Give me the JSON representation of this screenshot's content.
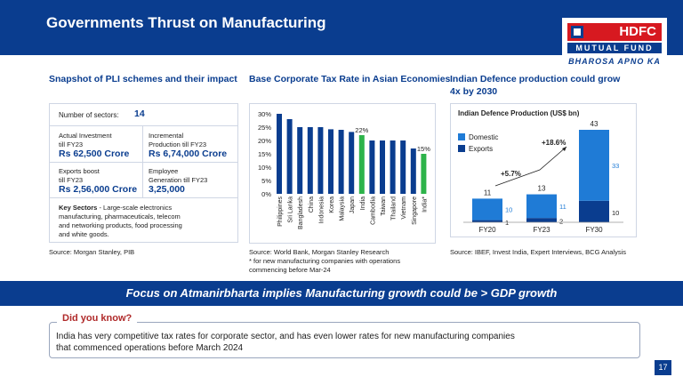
{
  "header": {
    "title": "Governments Thrust on Manufacturing"
  },
  "logo": {
    "brand": "HDFC",
    "line2": "MUTUAL FUND",
    "tagline": "BHAROSA APNO KA"
  },
  "pli": {
    "title": "Snapshot of PLI schemes and their impact",
    "sectors_label": "Number of sectors:",
    "sectors_value": "14",
    "investment_label1": "Actual Investment",
    "investment_label2": "till FY23",
    "investment_value": "Rs 62,500 Crore",
    "production_label1": "Incremental",
    "production_label2": "Production till FY23",
    "production_value": "Rs 6,74,000 Crore",
    "exports_label1": "Exports boost",
    "exports_label2": "till FY23",
    "exports_value": "Rs 2,56,000 Crore",
    "employee_label1": "Employee",
    "employee_label2": "Generation till FY23",
    "employee_value": "3,25,000",
    "key_bold": "Key Sectors",
    "key_text1": " - Large-scale electronics",
    "key_text2": "manufacturing, pharmaceuticals, telecom",
    "key_text3": "and networking products, food processing",
    "key_text4": "and white goods.",
    "source": "Source: Morgan Stanley, PIB"
  },
  "tax": {
    "title": "Base Corporate Tax Rate in Asian Economies",
    "source1": "Source: World Bank, Morgan Stanley Research",
    "source2": "* for new manufacturing companies with operations",
    "source3": "commencing before Mar-24"
  },
  "defence": {
    "title1": "Indian Defence production could grow",
    "title2": "4x by 2030",
    "source": "Source: IBEF, Invest India, Expert Interviews, BCG Analysis"
  },
  "chart_data": [
    {
      "type": "bar",
      "title": "Base Corporate Tax Rate in Asian Economies",
      "categories": [
        "Philippines",
        "Sri Lanka",
        "Bangladesh",
        "China",
        "Indonesia",
        "Korea",
        "Malaysia",
        "Japan",
        "India",
        "Cambodia",
        "Taiwan",
        "Thailand",
        "Vietnam",
        "Singapore",
        "India*"
      ],
      "values": [
        30,
        28,
        25,
        25,
        25,
        24.2,
        24,
        23.2,
        22,
        20,
        20,
        20,
        20,
        17,
        15
      ],
      "highlight": [
        "India",
        "India*"
      ],
      "data_labels": {
        "India": "22%",
        "India*": "15%"
      },
      "yticks": [
        "0%",
        "5%",
        "10%",
        "15%",
        "20%",
        "25%",
        "30%"
      ],
      "ylim": [
        0,
        30
      ],
      "colors": {
        "bar": "#0a3d8f",
        "highlight": "#2db34a"
      }
    },
    {
      "type": "bar",
      "stacked": true,
      "title": "Indian Defence Production (US$ bn)",
      "categories": [
        "FY20",
        "FY23",
        "FY30"
      ],
      "series": [
        {
          "name": "Domestic",
          "values": [
            10,
            11,
            33
          ],
          "color": "#1f7bd6"
        },
        {
          "name": "Exports",
          "values": [
            1,
            2,
            10
          ],
          "color": "#0a3d8f"
        }
      ],
      "totals": [
        11,
        13,
        43
      ],
      "annotations": [
        "+5.7%",
        "+18.6%"
      ],
      "ylim": [
        0,
        43
      ]
    }
  ],
  "banner": {
    "text": "Focus on Atmanirbharta implies Manufacturing growth could be > GDP growth"
  },
  "dyk": {
    "label": "Did you know?",
    "line1": "India has very competitive tax rates for corporate sector, and has even lower rates for new manufacturing companies",
    "line2": "that commenced operations before March 2024"
  },
  "page": {
    "number": "17"
  }
}
